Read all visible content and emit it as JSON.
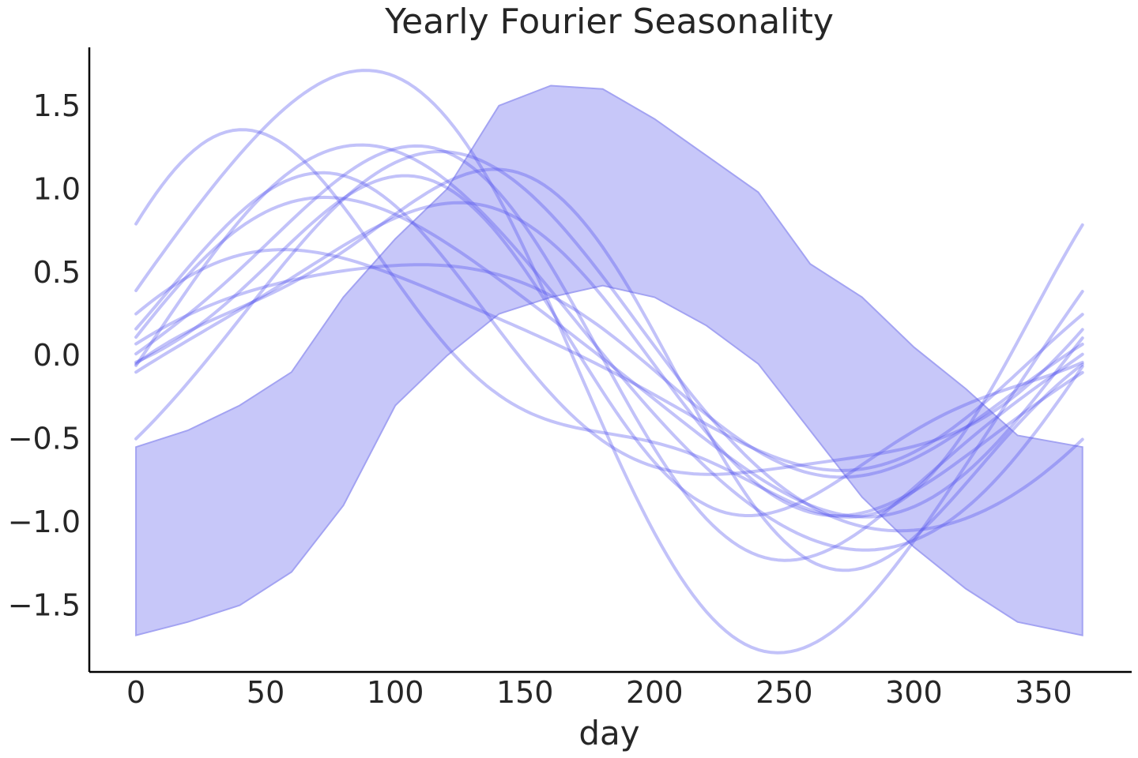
{
  "chart_data": {
    "type": "line",
    "title": "Yearly Fourier Seasonality",
    "xlabel": "day",
    "ylabel": "",
    "xlim": [
      -18,
      384
    ],
    "ylim": [
      -1.9,
      1.85
    ],
    "xticks": [
      0,
      50,
      100,
      150,
      200,
      250,
      300,
      350
    ],
    "xtick_labels": [
      "0",
      "50",
      "100",
      "150",
      "200",
      "250",
      "300",
      "350"
    ],
    "yticks": [
      1.5,
      1.0,
      0.5,
      0.0,
      -0.5,
      -1.0,
      -1.5
    ],
    "ytick_labels": [
      "1.5",
      "1.0",
      "0.5",
      "0.0",
      "−0.5",
      "−1.0",
      "−1.5"
    ],
    "grid": false,
    "legend": "none",
    "band": {
      "x": [
        0,
        20,
        40,
        60,
        80,
        100,
        120,
        140,
        160,
        180,
        200,
        220,
        240,
        260,
        280,
        300,
        320,
        340,
        365
      ],
      "upper": [
        -0.55,
        -0.45,
        -0.3,
        -0.1,
        0.35,
        0.7,
        1.0,
        1.5,
        1.62,
        1.6,
        1.42,
        1.2,
        0.98,
        0.55,
        0.35,
        0.05,
        -0.2,
        -0.48,
        -0.55
      ],
      "lower": [
        -1.68,
        -1.6,
        -1.5,
        -1.3,
        -0.9,
        -0.3,
        0.0,
        0.25,
        0.35,
        0.42,
        0.35,
        0.18,
        -0.05,
        -0.45,
        -0.85,
        -1.15,
        -1.4,
        -1.6,
        -1.68
      ]
    },
    "series": [
      {
        "values": {
          "x0": 0.0,
          "a1": -0.01,
          "b1": 1.21,
          "a2": -0.05,
          "b2": 0.06
        }
      },
      {
        "values": {
          "x0": 0.0,
          "a1": 0.35,
          "b1": 0.81,
          "a2": -0.19,
          "b2": 0.11
        }
      },
      {
        "values": {
          "x0": 0.0,
          "a1": 0.05,
          "b1": 1.15,
          "a2": -0.04,
          "b2": -0.25
        }
      },
      {
        "values": {
          "x0": 0.0,
          "a1": -0.32,
          "b1": 1.02,
          "a2": 0.27,
          "b2": -0.17
        }
      },
      {
        "values": {
          "x0": 0.0,
          "a1": -0.2,
          "b1": 0.86,
          "a2": 0.1,
          "b2": -0.14
        }
      },
      {
        "values": {
          "x0": 0.0,
          "a1": -0.46,
          "b1": 1.04,
          "a2": -0.04,
          "b2": -0.08
        }
      },
      {
        "values": {
          "x0": 0.0,
          "a1": -0.03,
          "b1": 0.63,
          "a2": 0.1,
          "b2": -0.03
        }
      },
      {
        "values": {
          "x0": 0.0,
          "a1": 0.17,
          "b1": 0.61,
          "a2": 0.08,
          "b2": 0.07
        }
      },
      {
        "values": {
          "x0": 0.0,
          "a1": 0.08,
          "b1": 0.93,
          "a2": 0.03,
          "b2": 0.11
        }
      },
      {
        "values": {
          "x0": 0.0,
          "a1": 0.63,
          "b1": 0.81,
          "a2": 0.16,
          "b2": 0.33
        }
      },
      {
        "values": {
          "x0": 0.0,
          "a1": 0.12,
          "b1": 0.88,
          "a2": -0.16,
          "b2": -0.24
        }
      },
      {
        "values": {
          "x0": 0.0,
          "a1": 0.45,
          "b1": 1.65,
          "a2": -0.06,
          "b2": -0.18
        }
      }
    ],
    "colors": {
      "band_fill": "#c7c7f9",
      "band_edge": "#a3a3f2",
      "line": "#5050ee",
      "axis": "#000000",
      "text": "#262626"
    }
  }
}
